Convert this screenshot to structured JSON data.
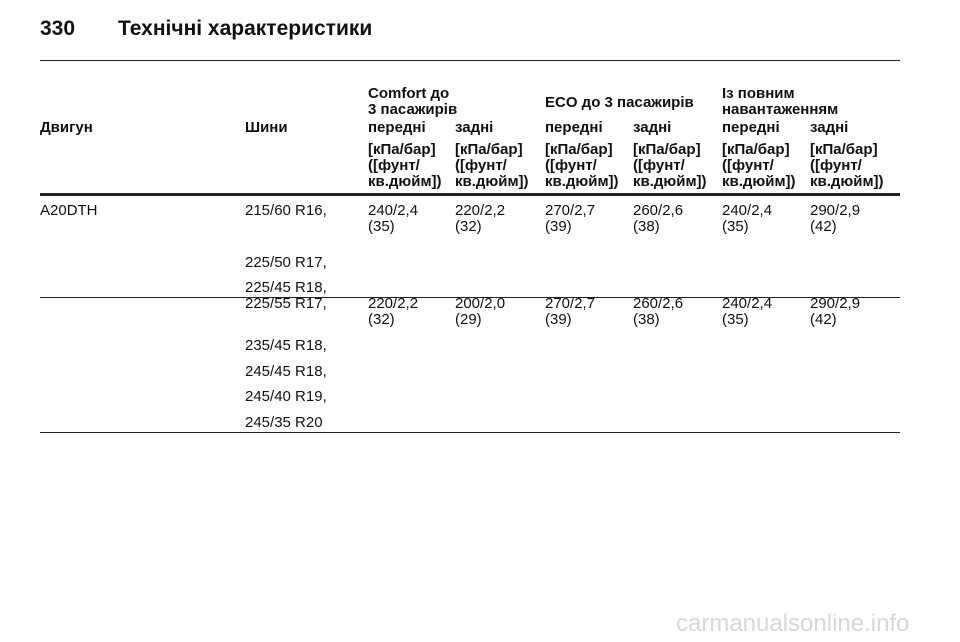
{
  "header": {
    "page_number": "330",
    "title": "Технічні характеристики"
  },
  "table": {
    "group_headers": [
      "Comfort до\n3 пасажирів",
      "ECO до 3 пасажирів",
      "Із повним\nнавантаженням"
    ],
    "column_headers": [
      "Двигун",
      "Шини",
      "передні",
      "задні",
      "передні",
      "задні",
      "передні",
      "задні"
    ],
    "units": [
      "[кПа/бар]\n([фунт/\nкв.дюйм])",
      "[кПа/бар]\n([фунт/\nкв.дюйм])",
      "[кПа/бар]\n([фунт/\nкв.дюйм])",
      "[кПа/бар]\n([фунт/\nкв.дюйм])",
      "[кПа/бар]\n([фунт/\nкв.дюйм])",
      "[кПа/бар]\n([фунт/\nкв.дюйм])"
    ],
    "rows": [
      {
        "engine": "A20DTH",
        "tyres": [
          "215/60 R16,",
          "225/50 R17,",
          "225/45 R18,"
        ],
        "pressures": [
          "240/2,4\n(35)",
          "220/2,2\n(32)",
          "270/2,7\n(39)",
          "260/2,6\n(38)",
          "240/2,4\n(35)",
          "290/2,9\n(42)"
        ]
      },
      {
        "tyres": [
          "225/55 R17,",
          "235/45 R18,",
          "245/45 R18,",
          "245/40 R19,",
          "245/35 R20"
        ],
        "pressures": [
          "220/2,2\n(32)",
          "200/2,0\n(29)",
          "270/2,7\n(39)",
          "260/2,6\n(38)",
          "240/2,4\n(35)",
          "290/2,9\n(42)"
        ]
      }
    ]
  },
  "watermark": "carmanualsonline.info"
}
